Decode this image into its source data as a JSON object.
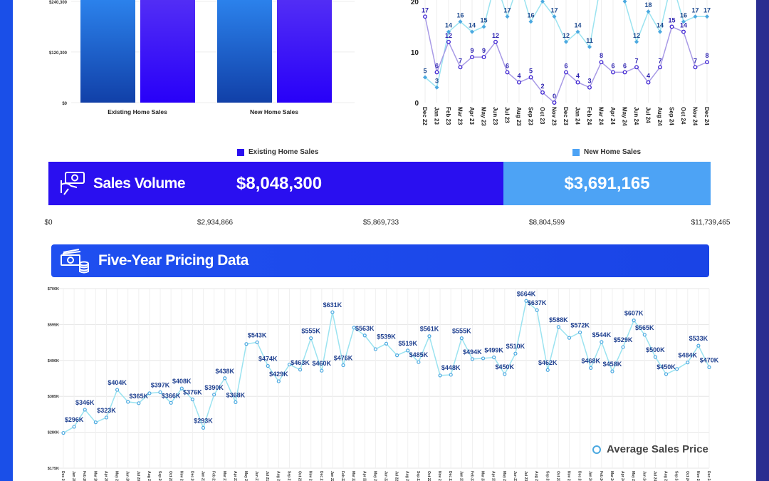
{
  "bar_chart": {
    "type": "bar",
    "categories": [
      "Existing Home Sales",
      "New Home Sales"
    ],
    "y_ticks": [
      "$0",
      "$120,300",
      "$240,300"
    ],
    "y_tick_values": [
      0,
      120300,
      240300
    ],
    "ylim": [
      0,
      250000
    ],
    "series": [
      {
        "color_top": "#2d86f0",
        "color_bottom": "#1140a8",
        "values": [
          260000,
          260000
        ]
      },
      {
        "color_top": "#5530f5",
        "color_bottom": "#2800f8",
        "values": [
          260000,
          260000
        ]
      }
    ]
  },
  "chart_data": {
    "type": "line",
    "categories": [
      "Dec 22",
      "Jan 23",
      "Feb 23",
      "Mar 23",
      "Apr 23",
      "May 23",
      "Jun 23",
      "Jul 23",
      "Aug 23",
      "Sep 23",
      "Oct 23",
      "Nov 23",
      "Dec 23",
      "Jan 24",
      "Feb 24",
      "Mar 24",
      "Apr 24",
      "May 24",
      "Jun 24",
      "Jul 24",
      "Aug 24",
      "Sep 24",
      "Oct 24",
      "Nov 24",
      "Dec 24"
    ],
    "y_ticks": [
      "0",
      "10",
      "20"
    ],
    "y_tick_values": [
      0,
      10,
      20
    ],
    "ylim": [
      0,
      20
    ],
    "series": [
      {
        "color": "#5ccbe6",
        "marker": "diamond",
        "values": [
          5,
          3,
          14,
          16,
          14,
          15,
          24,
          17,
          24,
          16,
          20,
          17,
          12,
          14,
          11,
          24,
          24,
          20,
          12,
          18,
          14,
          24,
          16,
          17,
          17
        ],
        "labels": [
          "5",
          "3",
          "14",
          "16",
          "14",
          "15",
          "",
          "17",
          "",
          "16",
          "",
          "17",
          "12",
          "14",
          "11",
          "",
          "",
          "",
          "12",
          "18",
          "14",
          "",
          "16",
          "17",
          "17"
        ]
      },
      {
        "color": "#3a1fd0",
        "marker": "circle",
        "values": [
          17,
          6,
          12,
          7,
          9,
          9,
          12,
          6,
          4,
          5,
          2,
          0,
          6,
          4,
          3,
          8,
          6,
          6,
          7,
          4,
          7,
          15,
          14,
          7,
          8
        ],
        "labels": [
          "17",
          "6",
          "12",
          "7",
          "9",
          "9",
          "12",
          "6",
          "4",
          "5",
          "2",
          "0",
          "6",
          "4",
          "3",
          "8",
          "6",
          "6",
          "7",
          "4",
          "7",
          "15",
          "14",
          "7",
          "8"
        ]
      }
    ]
  },
  "sales_volume": {
    "title": "Sales Volume",
    "legend": [
      {
        "label": "Existing Home Sales",
        "color": "#2a0ff0"
      },
      {
        "label": "New Home Sales",
        "color": "#4da3f5"
      }
    ],
    "existing_value": "$8,048,300",
    "new_value": "$3,691,165",
    "existing_amount": 8048300,
    "new_amount": 3691165,
    "axis_ticks": [
      "$0",
      "$2,934,866",
      "$5,869,733",
      "$8,804,599",
      "$11,739,465"
    ]
  },
  "pricing": {
    "title": "Five-Year Pricing Data",
    "legend_label": "Average Sales Price",
    "line_color": "#9be3f0",
    "marker_color": "#4aa8e0",
    "label_color": "#1e3f8f",
    "y_ticks": [
      "$175K",
      "$280K",
      "$385K",
      "$490K",
      "$595K",
      "$700K"
    ],
    "y_tick_values": [
      175,
      280,
      385,
      490,
      595,
      700
    ],
    "ylim": [
      175,
      700
    ],
    "months": [
      "Dec 19",
      "Jan 20",
      "Feb 20",
      "Mar 20",
      "Apr 20",
      "May 20",
      "Jun 20",
      "Jul 20",
      "Aug 20",
      "Sep 20",
      "Oct 20",
      "Nov 20",
      "Dec 20",
      "Jan 21",
      "Feb 21",
      "Mar 21",
      "Apr 21",
      "May 21",
      "Jun 21",
      "Jul 21",
      "Aug 21",
      "Sep 21",
      "Oct 21",
      "Nov 21",
      "Dec 21",
      "Jan 22",
      "Feb 22",
      "Mar 22",
      "Apr 22",
      "May 22",
      "Jun 22",
      "Jul 22",
      "Aug 22",
      "Sep 22",
      "Oct 22",
      "Nov 22",
      "Dec 22",
      "Jan 23",
      "Feb 23",
      "Mar 23",
      "Apr 23",
      "May 23",
      "Jun 23",
      "Jul 23",
      "Aug 23",
      "Sep 23",
      "Oct 23",
      "Nov 23",
      "Dec 23",
      "Jan 24",
      "Feb 24",
      "Mar 24",
      "Apr 24",
      "May 24",
      "Jun 24",
      "Jul 24",
      "Aug 24",
      "Sep 24",
      "Oct 24",
      "Nov 24",
      "Dec 24"
    ],
    "values": [
      278,
      296,
      346,
      309,
      323,
      404,
      369,
      365,
      394,
      397,
      366,
      408,
      376,
      293,
      390,
      438,
      368,
      538,
      543,
      474,
      429,
      478,
      463,
      555,
      460,
      631,
      476,
      586,
      563,
      523,
      539,
      505,
      519,
      485,
      561,
      446,
      448,
      555,
      494,
      496,
      499,
      450,
      510,
      664,
      637,
      462,
      588,
      556,
      572,
      468,
      544,
      458,
      529,
      607,
      565,
      500,
      450,
      465,
      484,
      533,
      470
    ],
    "labels": [
      "",
      "$296K",
      "$346K",
      "",
      "$323K",
      "$404K",
      "",
      "$365K",
      "",
      "$397K",
      "$366K",
      "$408K",
      "$376K",
      "$293K",
      "$390K",
      "$438K",
      "$368K",
      "",
      "$543K",
      "$474K",
      "$429K",
      "",
      "$463K",
      "$555K",
      "$460K",
      "$631K",
      "$476K",
      "",
      "$563K",
      "",
      "$539K",
      "",
      "$519K",
      "$485K",
      "$561K",
      "",
      "$448K",
      "$555K",
      "$494K",
      "",
      "$499K",
      "$450K",
      "$510K",
      "$664K",
      "$637K",
      "$462K",
      "$588K",
      "",
      "$572K",
      "$468K",
      "$544K",
      "$458K",
      "$529K",
      "$607K",
      "$565K",
      "$500K",
      "$450K",
      "",
      "$484K",
      "$533K",
      "$470K"
    ]
  }
}
